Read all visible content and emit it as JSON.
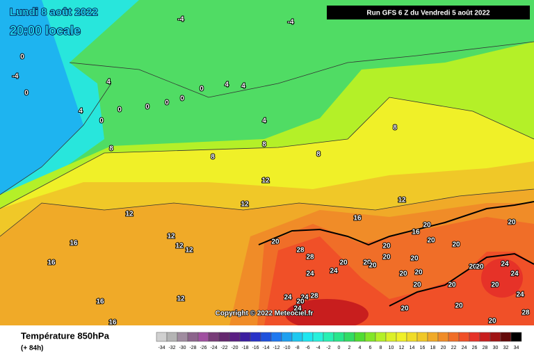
{
  "header": {
    "date": "Lundi 8 août 2022",
    "time": "20:00 locale",
    "run": "Run GFS 6 Z du Vendredi 5 août 2022"
  },
  "copyright": "Copyright © 2022 Meteociel.fr",
  "footer": {
    "title": "Température 850hPa",
    "lead": "(+ 84h)"
  },
  "scale": {
    "labels": [
      -34,
      -32,
      -30,
      -28,
      -26,
      -24,
      -22,
      -20,
      -18,
      -16,
      -14,
      -12,
      -10,
      -8,
      -6,
      -4,
      -2,
      0,
      2,
      4,
      6,
      8,
      10,
      12,
      14,
      16,
      18,
      20,
      22,
      24,
      26,
      28,
      30,
      32,
      34
    ],
    "colors": [
      "#d0d0d0",
      "#b4b4b4",
      "#a08ca0",
      "#8c648c",
      "#a050a0",
      "#783c78",
      "#64286e",
      "#5a1e82",
      "#3c1ea0",
      "#2832c8",
      "#1e50dc",
      "#1e78f0",
      "#1ea0f0",
      "#1ec8f0",
      "#1ee6f0",
      "#28f0dc",
      "#28f0b4",
      "#28e68c",
      "#32dc64",
      "#50dc32",
      "#82e628",
      "#b4f028",
      "#dcf028",
      "#f0f028",
      "#f0dc28",
      "#f0c828",
      "#f0aa28",
      "#f08c28",
      "#f06e28",
      "#f05028",
      "#e63228",
      "#c81e1e",
      "#a01414",
      "#640a0a",
      "#000000"
    ]
  },
  "contour_labels": [
    -4,
    -4,
    -4,
    0,
    0,
    4,
    4,
    0,
    0,
    0,
    0,
    0,
    4,
    4,
    4,
    0,
    8,
    8,
    8,
    8,
    8,
    12,
    12,
    12,
    12,
    12,
    12,
    12,
    16,
    16,
    16,
    16,
    16,
    12,
    20,
    28,
    28,
    20,
    24,
    24,
    20,
    20,
    20,
    20,
    20,
    16,
    20,
    20,
    20,
    20,
    20,
    20,
    20,
    24,
    20,
    20,
    20,
    24,
    20,
    20,
    20,
    20,
    28,
    24,
    24,
    24,
    28,
    20,
    24
  ]
}
